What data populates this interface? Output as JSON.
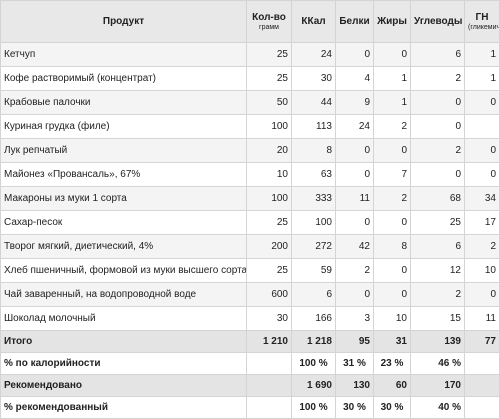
{
  "header": {
    "product": "Продукт",
    "amount": "Кол-во",
    "amount_unit": "грамм",
    "kcal": "ККал",
    "protein": "Белки",
    "fat": "Жиры",
    "carbs": "Углеводы",
    "gl": "ГН",
    "gl_note": "(гликемич. нагрузка)"
  },
  "rows": [
    {
      "name": "Кетчуп",
      "amount": "25",
      "kcal": "24",
      "protein": "0",
      "fat": "0",
      "carbs": "6",
      "gl": "1"
    },
    {
      "name": "Кофе растворимый (концентрат)",
      "amount": "25",
      "kcal": "30",
      "protein": "4",
      "fat": "1",
      "carbs": "2",
      "gl": "1"
    },
    {
      "name": "Крабовые палочки",
      "amount": "50",
      "kcal": "44",
      "protein": "9",
      "fat": "1",
      "carbs": "0",
      "gl": "0"
    },
    {
      "name": "Куриная грудка (филе)",
      "amount": "100",
      "kcal": "113",
      "protein": "24",
      "fat": "2",
      "carbs": "0",
      "gl": ""
    },
    {
      "name": "Лук репчатый",
      "amount": "20",
      "kcal": "8",
      "protein": "0",
      "fat": "0",
      "carbs": "2",
      "gl": "0"
    },
    {
      "name": "Майонез «Провансаль», 67%",
      "amount": "10",
      "kcal": "63",
      "protein": "0",
      "fat": "7",
      "carbs": "0",
      "gl": "0"
    },
    {
      "name": "Макароны из муки 1 сорта",
      "amount": "100",
      "kcal": "333",
      "protein": "11",
      "fat": "2",
      "carbs": "68",
      "gl": "34"
    },
    {
      "name": "Сахар-песок",
      "amount": "25",
      "kcal": "100",
      "protein": "0",
      "fat": "0",
      "carbs": "25",
      "gl": "17"
    },
    {
      "name": "Творог мягкий, диетический, 4%",
      "amount": "200",
      "kcal": "272",
      "protein": "42",
      "fat": "8",
      "carbs": "6",
      "gl": "2"
    },
    {
      "name": "Хлеб пшеничный, формовой из муки высшего сорта",
      "amount": "25",
      "kcal": "59",
      "protein": "2",
      "fat": "0",
      "carbs": "12",
      "gl": "10"
    },
    {
      "name": "Чай заваренный, на водопроводной воде",
      "amount": "600",
      "kcal": "6",
      "protein": "0",
      "fat": "0",
      "carbs": "2",
      "gl": "0"
    },
    {
      "name": "Шоколад молочный",
      "amount": "30",
      "kcal": "166",
      "protein": "3",
      "fat": "10",
      "carbs": "15",
      "gl": "11"
    }
  ],
  "total": {
    "label": "Итого",
    "amount": "1 210",
    "kcal": "1 218",
    "protein": "95",
    "fat": "31",
    "carbs": "139",
    "gl": "77"
  },
  "calorie_pct": {
    "label": "% по калорийности",
    "kcal": "100 %",
    "protein": "31 %",
    "fat": "23 %",
    "carbs": "46 %"
  },
  "recommended": {
    "label": "Рекомендовано",
    "kcal": "1 690",
    "protein": "130",
    "fat": "60",
    "carbs": "170"
  },
  "recommended_pct": {
    "label": "% рекомендованный",
    "kcal": "100 %",
    "protein": "30 %",
    "fat": "30 %",
    "carbs": "40 %"
  }
}
